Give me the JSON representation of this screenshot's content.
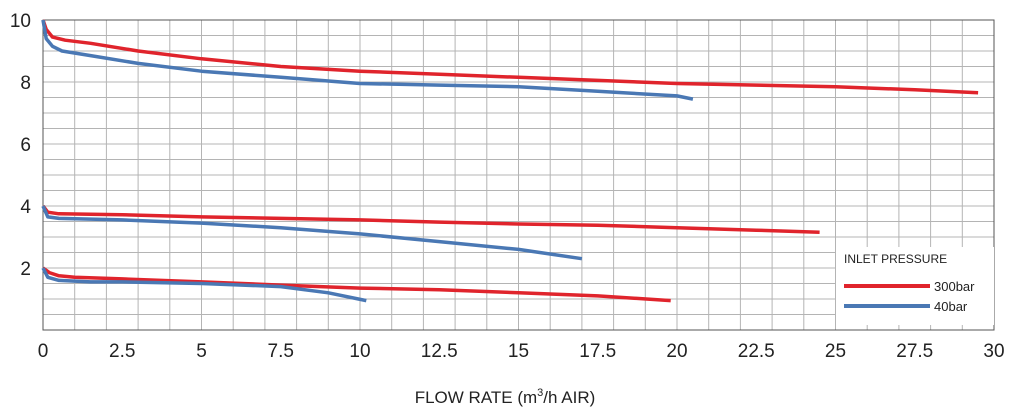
{
  "chart_data": {
    "type": "line",
    "title": "",
    "xlabel": "FLOW RATE (m",
    "xlabel_sup": "3",
    "xlabel_end": "/h AIR)",
    "ylabel": "",
    "xlim": [
      0,
      30
    ],
    "ylim": [
      0,
      10
    ],
    "grid": true,
    "x_ticks": [
      "0",
      "2.5",
      "5",
      "7.5",
      "10",
      "12.5",
      "15",
      "17.5",
      "20",
      "22.5",
      "25",
      "27.5",
      "30"
    ],
    "y_ticks": [
      "2",
      "4",
      "6",
      "8",
      "10"
    ],
    "legend": {
      "title": "INLET PRESSURE",
      "placement": "bottom-right",
      "entries": [
        {
          "name": "300bar",
          "color": "#e0242c"
        },
        {
          "name": "40bar",
          "color": "#4a78b4"
        }
      ]
    },
    "series": [
      {
        "name": "300bar",
        "color": "#e0242c",
        "points": [
          [
            0,
            10
          ],
          [
            0.1,
            9.7
          ],
          [
            0.3,
            9.45
          ],
          [
            0.7,
            9.35
          ],
          [
            1.5,
            9.25
          ],
          [
            3,
            9.0
          ],
          [
            5,
            8.75
          ],
          [
            7.5,
            8.5
          ],
          [
            10,
            8.35
          ],
          [
            12.5,
            8.25
          ],
          [
            15,
            8.15
          ],
          [
            17.5,
            8.05
          ],
          [
            20,
            7.95
          ],
          [
            22.5,
            7.9
          ],
          [
            25,
            7.85
          ],
          [
            27.5,
            7.75
          ],
          [
            29.5,
            7.65
          ]
        ]
      },
      {
        "name": "40bar",
        "color": "#4a78b4",
        "points": [
          [
            0,
            10
          ],
          [
            0.1,
            9.4
          ],
          [
            0.3,
            9.15
          ],
          [
            0.6,
            9.0
          ],
          [
            1.5,
            8.85
          ],
          [
            3,
            8.6
          ],
          [
            5,
            8.35
          ],
          [
            7.5,
            8.15
          ],
          [
            10,
            7.95
          ],
          [
            12.5,
            7.9
          ],
          [
            15,
            7.85
          ],
          [
            17.5,
            7.7
          ],
          [
            20,
            7.55
          ],
          [
            20.5,
            7.45
          ]
        ]
      },
      {
        "name": "300bar",
        "color": "#e0242c",
        "points": [
          [
            0,
            4.0
          ],
          [
            0.15,
            3.8
          ],
          [
            0.5,
            3.75
          ],
          [
            2.5,
            3.72
          ],
          [
            5,
            3.65
          ],
          [
            7.5,
            3.6
          ],
          [
            10,
            3.55
          ],
          [
            12.5,
            3.48
          ],
          [
            15,
            3.42
          ],
          [
            17.5,
            3.38
          ],
          [
            20,
            3.3
          ],
          [
            22.5,
            3.22
          ],
          [
            24.5,
            3.15
          ]
        ]
      },
      {
        "name": "40bar",
        "color": "#4a78b4",
        "points": [
          [
            0,
            4.0
          ],
          [
            0.15,
            3.65
          ],
          [
            0.5,
            3.6
          ],
          [
            2.5,
            3.55
          ],
          [
            5,
            3.45
          ],
          [
            7.5,
            3.3
          ],
          [
            10,
            3.1
          ],
          [
            12.5,
            2.85
          ],
          [
            15,
            2.6
          ],
          [
            17,
            2.3
          ]
        ]
      },
      {
        "name": "300bar",
        "color": "#e0242c",
        "points": [
          [
            0,
            2.0
          ],
          [
            0.2,
            1.85
          ],
          [
            0.5,
            1.75
          ],
          [
            1,
            1.7
          ],
          [
            2.5,
            1.65
          ],
          [
            5,
            1.55
          ],
          [
            7.5,
            1.45
          ],
          [
            10,
            1.35
          ],
          [
            12.5,
            1.3
          ],
          [
            15,
            1.2
          ],
          [
            17.5,
            1.1
          ],
          [
            19.8,
            0.95
          ]
        ]
      },
      {
        "name": "40bar",
        "color": "#4a78b4",
        "points": [
          [
            0,
            2.0
          ],
          [
            0.15,
            1.7
          ],
          [
            0.5,
            1.6
          ],
          [
            1.5,
            1.55
          ],
          [
            2.5,
            1.55
          ],
          [
            5,
            1.5
          ],
          [
            7.5,
            1.4
          ],
          [
            9,
            1.2
          ],
          [
            10.2,
            0.95
          ]
        ]
      }
    ]
  }
}
